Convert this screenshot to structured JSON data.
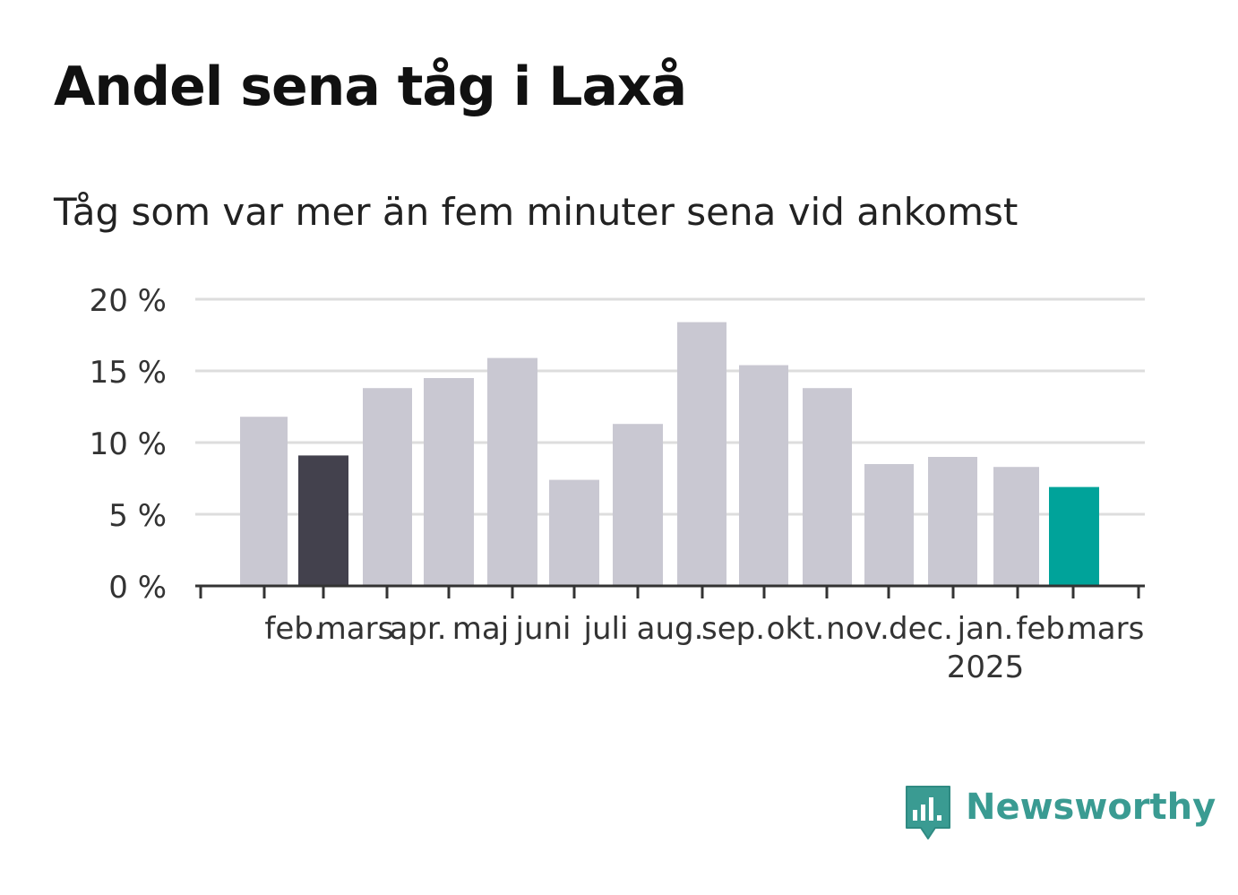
{
  "header": {
    "title": "Andel sena tåg i Laxå",
    "subtitle": "Tåg som var mer än fem minuter sena vid ankomst"
  },
  "logo": {
    "text": "Newsworthy",
    "icon": "bar-chart-speech-bubble-icon",
    "color": "#3a9b92"
  },
  "colors": {
    "default_bar": "#c9c8d2",
    "highlight_previous_year": "#43414d",
    "highlight_current": "#00a39a",
    "gridline": "#dddddd",
    "axis": "#333333",
    "tick_text": "#333333"
  },
  "chart_data": {
    "type": "bar",
    "categories": [
      "feb.",
      "mars",
      "apr.",
      "maj",
      "juni",
      "juli",
      "aug.",
      "sep.",
      "okt.",
      "nov.",
      "dec.",
      "jan.",
      "feb.",
      "mars"
    ],
    "category_sublabels": [
      "",
      "",
      "",
      "",
      "",
      "",
      "",
      "",
      "",
      "",
      "",
      "2025",
      "",
      ""
    ],
    "values": [
      11.8,
      9.1,
      13.8,
      14.5,
      15.9,
      7.4,
      11.3,
      18.4,
      15.4,
      13.8,
      8.5,
      9.0,
      8.3,
      6.9
    ],
    "bar_roles": [
      "default",
      "previous_year",
      "default",
      "default",
      "default",
      "default",
      "default",
      "default",
      "default",
      "default",
      "default",
      "default",
      "default",
      "current"
    ],
    "ylim": [
      0,
      20
    ],
    "yticks": [
      0,
      5,
      10,
      15,
      20
    ],
    "ytick_labels": [
      "0 %",
      "5 %",
      "10 %",
      "15 %",
      "20 %"
    ],
    "grid": true,
    "xlabel": "",
    "ylabel": ""
  }
}
